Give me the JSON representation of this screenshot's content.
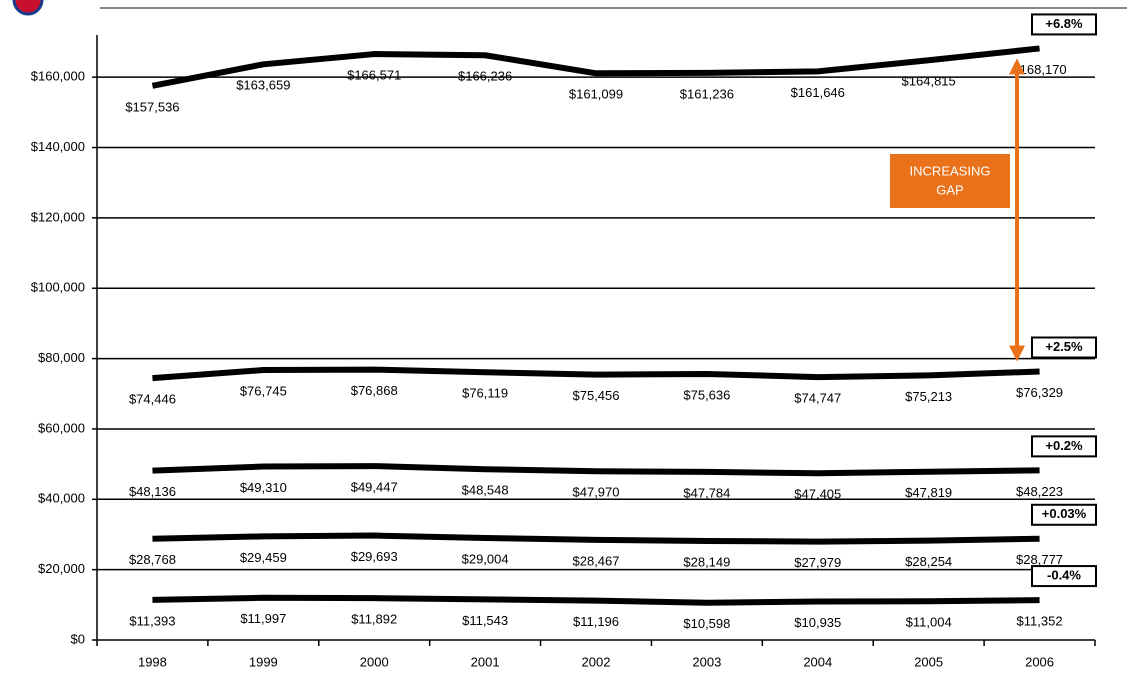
{
  "chart_data": {
    "type": "line",
    "categories": [
      "1998",
      "1999",
      "2000",
      "2001",
      "2002",
      "2003",
      "2004",
      "2005",
      "2006"
    ],
    "series": [
      {
        "color": "#000000",
        "values": [
          157536,
          163659,
          166571,
          166236,
          161099,
          161236,
          161646,
          164815,
          168170
        ],
        "value_labels": [
          "$157,536",
          "$163,659",
          "$166,571",
          "$166,236",
          "$161,099",
          "$161,236",
          "$161,646",
          "$164,815",
          "$168,170"
        ],
        "annotation": "+6.8%"
      },
      {
        "color": "#000000",
        "values": [
          74446,
          76745,
          76868,
          76119,
          75456,
          75636,
          74747,
          75213,
          76329
        ],
        "value_labels": [
          "$74,446",
          "$76,745",
          "$76,868",
          "$76,119",
          "$75,456",
          "$75,636",
          "$74,747",
          "$75,213",
          "$76,329"
        ],
        "annotation": "+2.5%"
      },
      {
        "color": "#000000",
        "values": [
          48136,
          49310,
          49447,
          48548,
          47970,
          47784,
          47405,
          47819,
          48223
        ],
        "value_labels": [
          "$48,136",
          "$49,310",
          "$49,447",
          "$48,548",
          "$47,970",
          "$47,784",
          "$47,405",
          "$47,819",
          "$48,223"
        ],
        "annotation": "+0.2%"
      },
      {
        "color": "#000000",
        "values": [
          28768,
          29459,
          29693,
          29004,
          28467,
          28149,
          27979,
          28254,
          28777
        ],
        "value_labels": [
          "$28,768",
          "$29,459",
          "$29,693",
          "$29,004",
          "$28,467",
          "$28,149",
          "$27,979",
          "$28,254",
          "$28,777"
        ],
        "annotation": "+0.03%"
      },
      {
        "color": "#000000",
        "values": [
          11393,
          11997,
          11892,
          11543,
          11196,
          10598,
          10935,
          11004,
          11352
        ],
        "value_labels": [
          "$11,393",
          "$11,997",
          "$11,892",
          "$11,543",
          "$11,196",
          "$10,598",
          "$10,935",
          "$11,004",
          "$11,352"
        ],
        "annotation": "-0.4%"
      }
    ],
    "ylim": [
      0,
      170000
    ],
    "yticks": [
      {
        "value": 0,
        "label": "$0"
      },
      {
        "value": 20000,
        "label": "$20,000"
      },
      {
        "value": 40000,
        "label": "$40,000"
      },
      {
        "value": 60000,
        "label": "$60,000"
      },
      {
        "value": 80000,
        "label": "$80,000"
      },
      {
        "value": 100000,
        "label": "$100,000"
      },
      {
        "value": 120000,
        "label": "$120,000"
      },
      {
        "value": 140000,
        "label": "$140,000"
      },
      {
        "value": 160000,
        "label": "$160,000"
      }
    ],
    "grid": true,
    "gap_annotation": {
      "lines": [
        "INCREASING",
        "GAP"
      ],
      "color": "#e8711a"
    }
  }
}
